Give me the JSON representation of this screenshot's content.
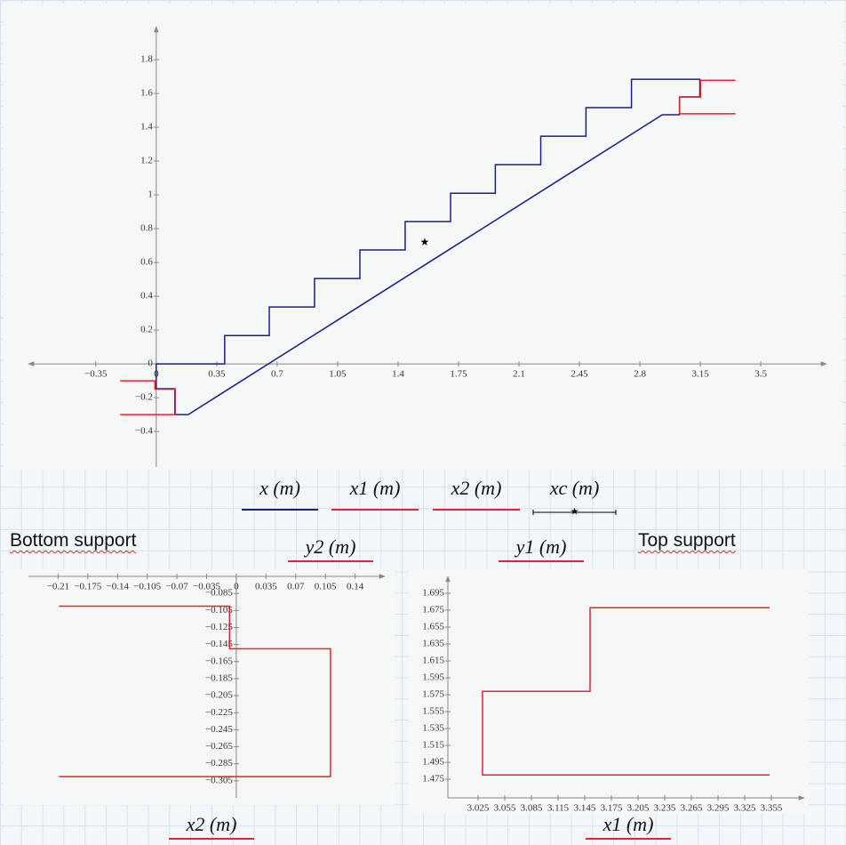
{
  "chart_data": [
    {
      "type": "line",
      "legend": "bottom",
      "xlim": [
        -0.74,
        3.88
      ],
      "ylim": [
        -0.61,
        1.995
      ],
      "xticks": [
        {
          "value": -0.35,
          "label": "−0.35"
        },
        0,
        0.35,
        0.7,
        1.05,
        1.4,
        1.75,
        2.1,
        2.45,
        2.8,
        3.15,
        3.5
      ],
      "yticks": [
        {
          "value": -0.4,
          "label": "−0.4"
        },
        {
          "value": -0.2,
          "label": "−0.2"
        },
        0,
        0.2,
        0.4,
        0.6,
        0.8,
        1,
        1.2,
        1.4,
        1.6,
        1.8
      ],
      "series": [
        {
          "name": "x (m)",
          "color": "#1c1c8f",
          "x": [
            0,
            0.396,
            0.396,
            0.654,
            0.654,
            0.916,
            0.916,
            1.179,
            1.179,
            1.441,
            1.441,
            1.704,
            1.704,
            1.963,
            1.963,
            2.226,
            2.226,
            2.488,
            2.488,
            2.751,
            2.751,
            3.147,
            3.147,
            3.029,
            3.029,
            2.93,
            0.185,
            0.108,
            0.108,
            0,
            0
          ],
          "values": [
            0,
            0,
            0.168,
            0.168,
            0.337,
            0.337,
            0.505,
            0.505,
            0.674,
            0.674,
            0.842,
            0.842,
            1.01,
            1.01,
            1.179,
            1.179,
            1.347,
            1.347,
            1.516,
            1.516,
            1.684,
            1.684,
            1.579,
            1.579,
            1.474,
            1.474,
            -0.3,
            -0.3,
            -0.147,
            -0.147,
            0
          ]
        },
        {
          "name": "x1 (m)",
          "color": "#e8222e",
          "x": [
            3.353,
            3.03,
            3.03,
            3.151,
            3.151,
            3.353
          ],
          "values": [
            1.48,
            1.48,
            1.579,
            1.579,
            1.678,
            1.678
          ]
        },
        {
          "name": "x2 (m)",
          "color": "#e8222e",
          "x": [
            -0.209,
            -0.008,
            -0.008,
            0.111,
            0.111,
            -0.209
          ],
          "values": [
            -0.1,
            -0.1,
            -0.15,
            -0.15,
            -0.3,
            -0.3
          ]
        },
        {
          "name": "xc (m)",
          "color": "#000000",
          "marker": "star",
          "x": [
            1.554
          ],
          "values": [
            0.716
          ]
        }
      ]
    },
    {
      "type": "line",
      "title": "Bottom support",
      "x_label": "x2 (m)",
      "y_label": "y2 (m)",
      "xlim": [
        -0.245,
        0.175
      ],
      "ylim": [
        -0.325,
        -0.065
      ],
      "xticks": [
        {
          "value": -0.21,
          "label": "−0.21"
        },
        {
          "value": -0.175,
          "label": "−0.175"
        },
        {
          "value": -0.14,
          "label": "−0.14"
        },
        {
          "value": -0.105,
          "label": "−0.105"
        },
        {
          "value": -0.07,
          "label": "−0.07"
        },
        {
          "value": -0.035,
          "label": "−0.035"
        },
        0,
        0.035,
        0.07,
        0.105,
        0.14
      ],
      "yticks": [
        {
          "value": -0.085,
          "label": "−0.085"
        },
        {
          "value": -0.105,
          "label": "−0.105"
        },
        {
          "value": -0.125,
          "label": "−0.125"
        },
        {
          "value": -0.145,
          "label": "−0.145"
        },
        {
          "value": -0.165,
          "label": "−0.165"
        },
        {
          "value": -0.185,
          "label": "−0.185"
        },
        {
          "value": -0.205,
          "label": "−0.205"
        },
        {
          "value": -0.225,
          "label": "−0.225"
        },
        {
          "value": -0.245,
          "label": "−0.245"
        },
        {
          "value": -0.265,
          "label": "−0.265"
        },
        {
          "value": -0.285,
          "label": "−0.285"
        },
        {
          "value": -0.305,
          "label": "−0.305"
        }
      ],
      "series": [
        {
          "color": "#e8222e",
          "x": [
            -0.209,
            -0.008,
            -0.008,
            0.111,
            0.111,
            -0.209
          ],
          "values": [
            -0.1,
            -0.1,
            -0.15,
            -0.15,
            -0.3,
            -0.3
          ]
        }
      ]
    },
    {
      "type": "line",
      "title": "Top support",
      "x_label": "x1 (m)",
      "y_label": "y1 (m)",
      "xlim": [
        2.991,
        3.392
      ],
      "ylim": [
        1.453,
        1.715
      ],
      "xticks": [
        3.025,
        3.055,
        3.085,
        3.115,
        3.145,
        3.175,
        3.205,
        3.235,
        3.265,
        3.295,
        3.325,
        3.355
      ],
      "yticks": [
        1.475,
        1.495,
        1.515,
        1.535,
        1.555,
        1.575,
        1.595,
        1.615,
        1.635,
        1.655,
        1.675,
        1.695
      ],
      "series": [
        {
          "color": "#e8222e",
          "x": [
            3.353,
            3.03,
            3.03,
            3.151,
            3.151,
            3.353
          ],
          "values": [
            1.48,
            1.48,
            1.579,
            1.579,
            1.678,
            1.678
          ]
        }
      ]
    }
  ]
}
